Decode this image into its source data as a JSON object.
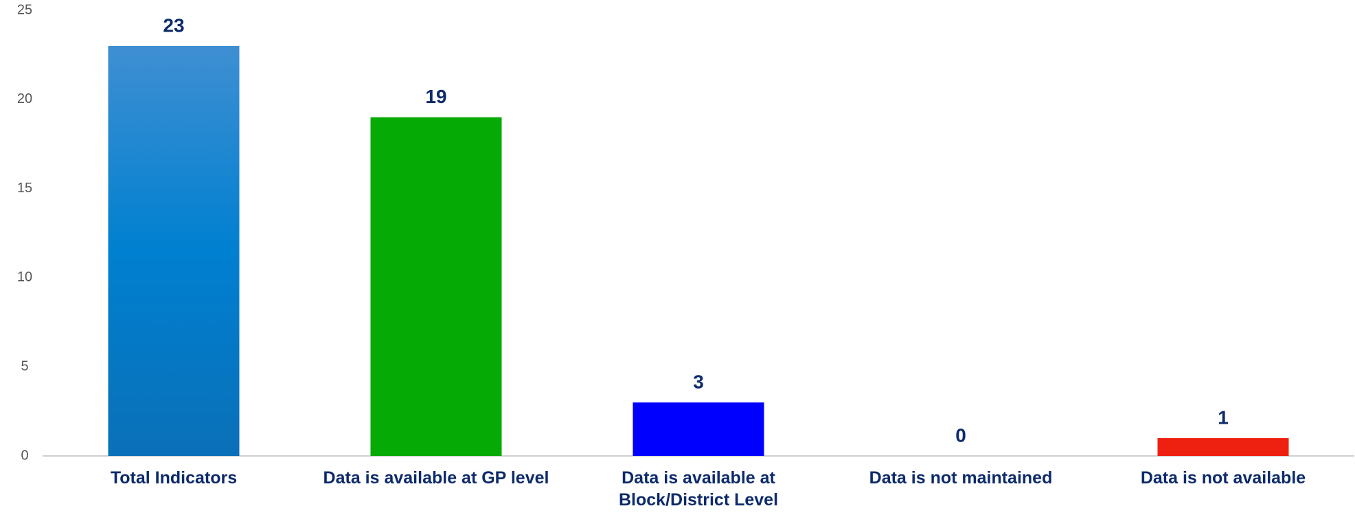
{
  "chart_data": {
    "type": "bar",
    "categories": [
      "Total Indicators",
      "Data is available at GP level",
      "Data is available at Block/District Level",
      "Data is not maintained",
      "Data is not available"
    ],
    "values": [
      23,
      19,
      3,
      0,
      1
    ],
    "colors": [
      "#0a7ccc",
      "#05aa05",
      "#0000ff",
      "#888888",
      "#ee2010"
    ],
    "ylim": [
      0,
      25
    ],
    "yticks": [
      0,
      5,
      10,
      15,
      20,
      25
    ],
    "grid": false
  }
}
